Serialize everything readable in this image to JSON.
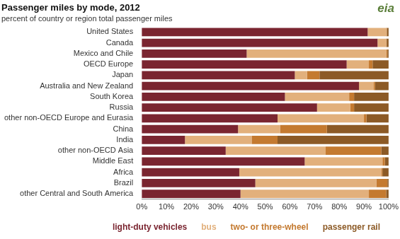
{
  "chart_data": {
    "type": "bar",
    "title": "Passenger miles by mode, 2012",
    "subtitle": "percent of country or region total passenger miles",
    "annotations": [
      "eia"
    ],
    "orientation": "horizontal",
    "stacked": true,
    "grid": false,
    "legend": "bottom",
    "categories": [
      "United States",
      "Canada",
      "Mexico and Chile",
      "OECD Europe",
      "Japan",
      "Australia and New Zealand",
      "South Korea",
      "Russia",
      "other non-OECD Europe and Eurasia",
      "China",
      "India",
      "other non-OECD Asia",
      "Middle East",
      "Africa",
      "Brazil",
      "other Central and South America"
    ],
    "series": [
      {
        "name": "light-duty vehicles",
        "color": "#7a2530",
        "values": [
          91.5,
          95.5,
          42.5,
          83,
          62,
          88,
          58,
          71,
          55,
          39,
          17.5,
          34,
          66,
          39.5,
          46,
          40
        ]
      },
      {
        "name": "bus",
        "color": "#e2b07c",
        "values": [
          7.5,
          3.5,
          56.5,
          9,
          5,
          6,
          26,
          13.5,
          35,
          17,
          27,
          40.5,
          31.5,
          57.5,
          49,
          52
        ]
      },
      {
        "name": "two- or three-wheel",
        "color": "#c47a30",
        "values": [
          0.3,
          0.2,
          0.5,
          1.5,
          5,
          0.5,
          2,
          1.5,
          1,
          19,
          10.5,
          22.5,
          1,
          0.5,
          4.5,
          7
        ]
      },
      {
        "name": "passenger rail",
        "color": "#8c5a26",
        "values": [
          0.7,
          0.8,
          0.5,
          6.5,
          28,
          5.5,
          14,
          14,
          9,
          25,
          45,
          3,
          1.5,
          2.5,
          0.5,
          1
        ]
      }
    ],
    "xlim": [
      0,
      100
    ],
    "xticks": [
      {
        "value": 0,
        "label": "0%"
      },
      {
        "value": 10,
        "label": "10%"
      },
      {
        "value": 20,
        "label": "20%"
      },
      {
        "value": 30,
        "label": "30%"
      },
      {
        "value": 40,
        "label": "40%"
      },
      {
        "value": 50,
        "label": "50%"
      },
      {
        "value": 60,
        "label": "60%"
      },
      {
        "value": 70,
        "label": "70%"
      },
      {
        "value": 80,
        "label": "80%"
      },
      {
        "value": 90,
        "label": "90%"
      },
      {
        "value": 100,
        "label": "100%"
      }
    ]
  }
}
